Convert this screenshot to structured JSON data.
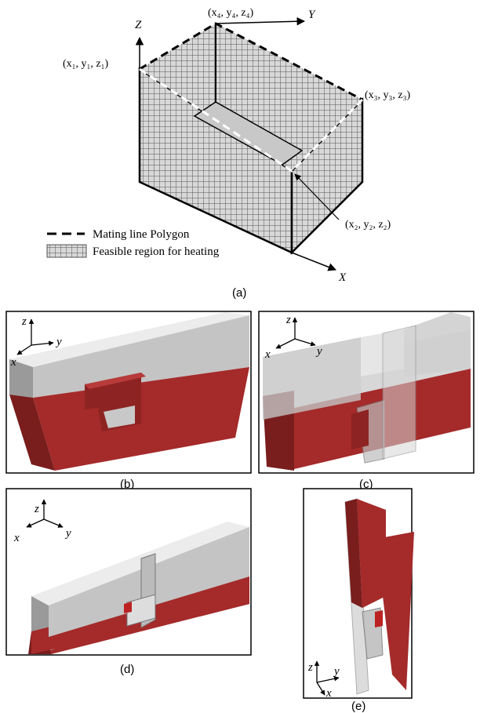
{
  "panel_a": {
    "axes": {
      "z": "Z",
      "y": "Y",
      "x": "X"
    },
    "points": {
      "p1": "(x₁, y₁, z₁)",
      "p2": "(x₂, y₂, z₂)",
      "p3": "(x₃, y₃, z₃)",
      "p4": "(x₄, y₄, z₄)"
    },
    "legend": {
      "mating": "Mating line Polygon",
      "feasible": "Feasible region for heating"
    },
    "caption": "(a)"
  },
  "panel_b": {
    "axes": {
      "z": "z",
      "y": "y",
      "x": "x"
    },
    "caption": "(b)"
  },
  "panel_c": {
    "axes": {
      "z": "z",
      "y": "y",
      "x": "x"
    },
    "caption": "(c)"
  },
  "panel_d": {
    "axes": {
      "z": "z",
      "y": "y",
      "x": "x"
    },
    "caption": "(d)"
  },
  "panel_e": {
    "axes": {
      "z": "z",
      "y": "y",
      "x": "x"
    },
    "caption": "(e)"
  }
}
